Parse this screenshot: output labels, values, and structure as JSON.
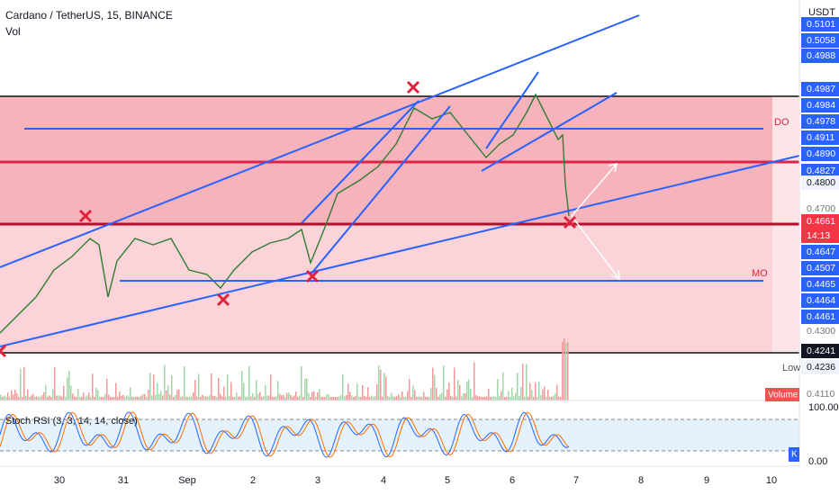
{
  "header": {
    "title": "Cardano / TetherUS, 15, BINANCE",
    "indicator": "Vol"
  },
  "annotations": {
    "do": "DO",
    "mo": "MO"
  },
  "price_axis": {
    "currency": "USDT",
    "labels": [
      "0.5101",
      "0.5058",
      "0.4988",
      "0.4987",
      "0.4984",
      "0.4978",
      "0.4911",
      "0.4890",
      "0.4827",
      "0.4800",
      "0.4700",
      "0.4661",
      "14:13",
      "0.4647",
      "0.4507",
      "0.4465",
      "0.4464",
      "0.4461",
      "0.4300",
      "0.4241",
      "0.4236",
      "0.4110"
    ],
    "low": "Low",
    "volume": "Volume"
  },
  "stoch": {
    "title": "Stoch RSI (3, 3, 14, 14, close)",
    "top": "100.00",
    "bottom": "0.00",
    "k": "K"
  },
  "dates": [
    "30",
    "31",
    "Sep",
    "2",
    "3",
    "4",
    "5",
    "6",
    "7",
    "8",
    "9",
    "10"
  ]
}
